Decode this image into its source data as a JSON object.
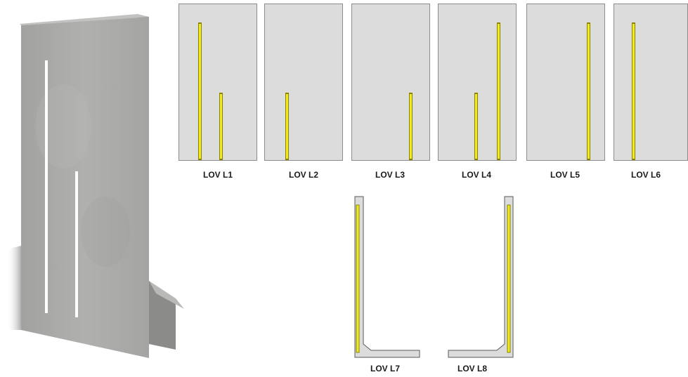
{
  "variants": [
    {
      "label": "LOV L1",
      "strips": [
        "tall-left",
        "short-center"
      ]
    },
    {
      "label": "LOV L2",
      "strips": [
        "short-left"
      ]
    },
    {
      "label": "LOV L3",
      "strips": [
        "short-right"
      ]
    },
    {
      "label": "LOV L4",
      "strips": [
        "short-center",
        "tall-right"
      ]
    },
    {
      "label": "LOV L5",
      "strips": [
        "tall-right"
      ]
    },
    {
      "label": "LOV L6",
      "strips": [
        "tall-left"
      ]
    },
    {
      "label": "LOV L7",
      "strips": [
        "section-inner-face"
      ]
    },
    {
      "label": "LOV L8",
      "strips": [
        "section-inner-face"
      ]
    }
  ],
  "colors": {
    "panel_fill": "#dcdcdc",
    "panel_border": "#8c8c8c",
    "strip_fill": "#f2ea22",
    "concrete": "#a7a7a5"
  }
}
